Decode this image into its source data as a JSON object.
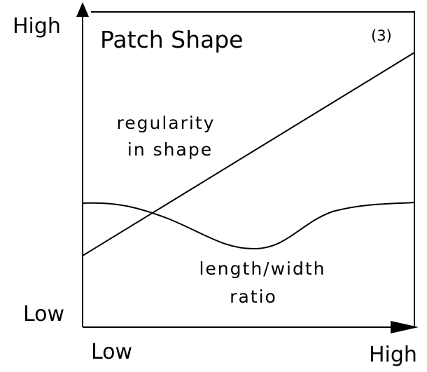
{
  "title": "Patch Shape",
  "panel": "(3)",
  "axes": {
    "y_high": "High",
    "y_low": "Low",
    "x_low": "Low",
    "x_high": "High"
  },
  "curves": [
    {
      "label": [
        "regularity",
        "in shape"
      ]
    },
    {
      "label": [
        "length/width",
        "ratio"
      ]
    }
  ]
}
